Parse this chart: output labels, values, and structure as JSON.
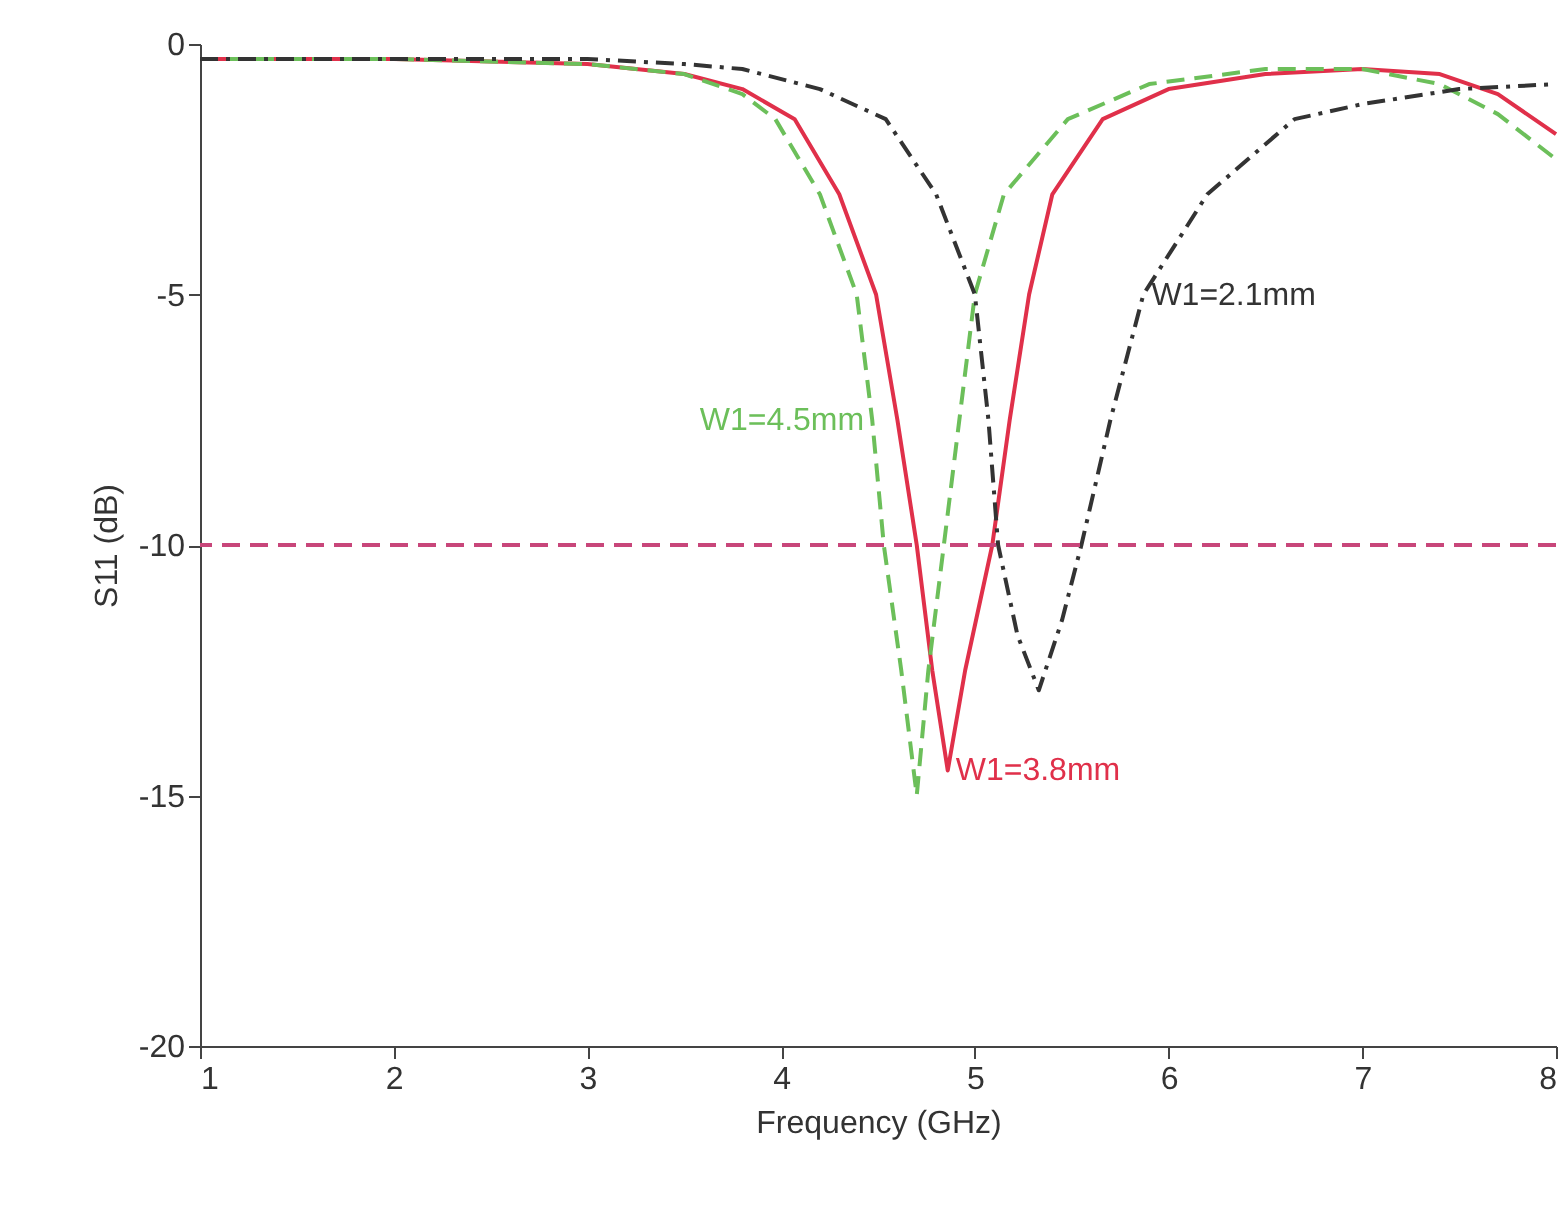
{
  "chart_data": {
    "type": "line",
    "xlabel": "Frequency (GHz)",
    "ylabel": "S11 (dB)",
    "xlim": [
      1,
      8
    ],
    "xticks": [
      1,
      2,
      3,
      4,
      5,
      6,
      7,
      8
    ],
    "ylim": [
      -20,
      0
    ],
    "yticks": [
      -20,
      -15,
      -10,
      -5,
      0
    ],
    "grid": false,
    "legend": false,
    "series": [
      {
        "color": "#e0304a",
        "line_style": "solid",
        "x": [
          1,
          2,
          3,
          3.5,
          3.8,
          4.07,
          4.3,
          4.49,
          4.6,
          4.7,
          4.78,
          4.86,
          4.95,
          5.09,
          5.18,
          5.28,
          5.4,
          5.66,
          6.0,
          6.5,
          7.0,
          7.4,
          7.7,
          8
        ],
        "values": [
          -0.3,
          -0.3,
          -0.4,
          -0.6,
          -0.9,
          -1.5,
          -3,
          -5,
          -7.5,
          -10,
          -12.5,
          -14.5,
          -12.5,
          -10,
          -7.5,
          -5,
          -3,
          -1.5,
          -0.9,
          -0.6,
          -0.5,
          -0.6,
          -1.0,
          -1.8
        ]
      },
      {
        "color": "#6cbf5a",
        "line_style": "dashed",
        "x": [
          1,
          2,
          3,
          3.5,
          3.8,
          3.97,
          4.2,
          4.39,
          4.47,
          4.53,
          4.62,
          4.7,
          4.76,
          4.84,
          4.92,
          5.0,
          5.15,
          5.48,
          5.9,
          6.5,
          7.0,
          7.4,
          7.7,
          8
        ],
        "values": [
          -0.3,
          -0.3,
          -0.4,
          -0.6,
          -1.0,
          -1.5,
          -3,
          -5,
          -7.5,
          -10,
          -12.5,
          -15,
          -12.5,
          -10,
          -7.5,
          -5,
          -3,
          -1.5,
          -0.8,
          -0.5,
          -0.5,
          -0.8,
          -1.4,
          -2.3
        ]
      },
      {
        "color": "#333333",
        "line_style": "dashdot",
        "x": [
          1,
          2,
          3,
          3.5,
          3.8,
          4.2,
          4.54,
          4.8,
          5.0,
          5.07,
          5.12,
          5.22,
          5.33,
          5.45,
          5.55,
          5.7,
          5.87,
          6.2,
          6.65,
          7.0,
          7.5,
          8
        ],
        "values": [
          -0.3,
          -0.3,
          -0.3,
          -0.4,
          -0.5,
          -0.9,
          -1.5,
          -3,
          -5,
          -7.5,
          -10,
          -11.8,
          -12.9,
          -11.5,
          -10,
          -7.5,
          -5,
          -3,
          -1.5,
          -1.2,
          -0.9,
          -0.8
        ]
      }
    ],
    "ref_lines": [
      {
        "axis": "y",
        "value": -10,
        "color": "#c8467a",
        "line_style": "dashed"
      }
    ],
    "annotations": [
      {
        "text": "W1=3.8mm",
        "x": 4.86,
        "y": -14.5
      },
      {
        "text": "W1=4.5mm",
        "x": 4.47,
        "y": -7.5
      },
      {
        "text": "W1=2.1mm",
        "x": 5.87,
        "y": -5
      }
    ]
  }
}
